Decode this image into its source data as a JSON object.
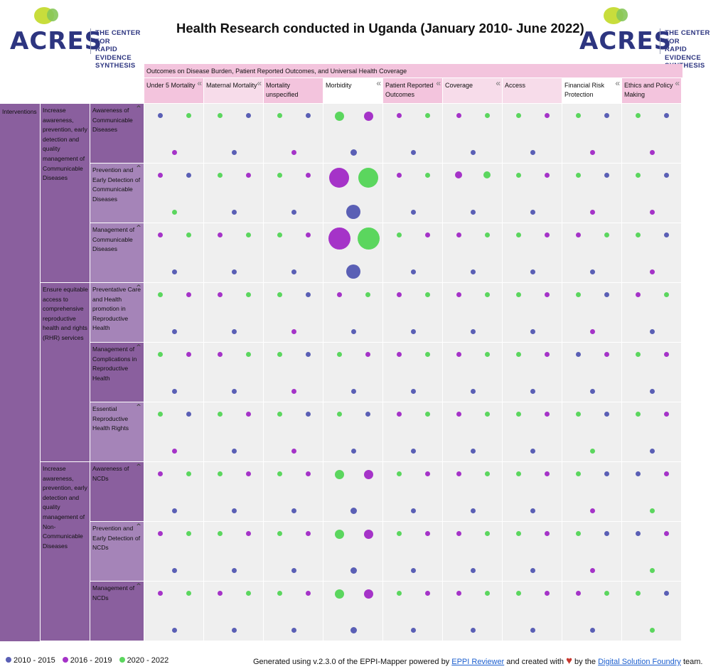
{
  "header": {
    "title": "Health Research conducted in Uganda (January 2010- June 2022)",
    "logo_word": "ACRES",
    "logo_sub": [
      "THE CENTER FOR",
      "RAPID EVIDENCE",
      "SYNTHESIS"
    ]
  },
  "band_label": "Outcomes on Disease Burden, Patient Reported Outcomes, and Universal Health Coverage",
  "columns": [
    {
      "label": "Under 5 Mortality",
      "bg": "#f3c4dd",
      "collapse": "«"
    },
    {
      "label": "Maternal Mortality",
      "bg": "#f7dcea",
      "collapse": "«"
    },
    {
      "label": "Mortality unspecified",
      "bg": "#f3c4dd",
      "collapse": ""
    },
    {
      "label": "Morbidity",
      "bg": "#ffffff",
      "collapse": "«"
    },
    {
      "label": "Patient Reported Outcomes",
      "bg": "#f3c4dd",
      "collapse": "«"
    },
    {
      "label": "Coverage",
      "bg": "#f7dcea",
      "collapse": "«"
    },
    {
      "label": "Access",
      "bg": "#f7dcea",
      "collapse": ""
    },
    {
      "label": "Financial Risk Protection",
      "bg": "#ffffff",
      "collapse": "«"
    },
    {
      "label": "Ethics and Policy Making",
      "bg": "#f3c4dd",
      "collapse": "«"
    }
  ],
  "row_group": "Interventions",
  "mid_rows": [
    {
      "label": "Increase awareness, prevention, early detection and quality management of Communicable Diseases",
      "span": 3
    },
    {
      "label": "Ensure equitable access to comprehensive reproductive health and rights (RHR) services",
      "span": 3
    },
    {
      "label": "Increase awareness, prevention, early detection and quality management of Non-Communicable Diseases",
      "span": 3
    }
  ],
  "sub_rows": [
    {
      "label": "Awareness of Communicable Diseases",
      "bg": "#8a5f9e"
    },
    {
      "label": "Prevention and Early Detection of Communicable Diseases",
      "bg": "#a584b8"
    },
    {
      "label": "Management of Communicable Diseases",
      "bg": "#a584b8"
    },
    {
      "label": "Preventative Care and Health promotion in Reproductive Health",
      "bg": "#a584b8"
    },
    {
      "label": "Management of Complications in Reproductive Health",
      "bg": "#8a5f9e"
    },
    {
      "label": "Essential Reproductive Health Rights",
      "bg": "#a584b8"
    },
    {
      "label": "Awareness of NCDs",
      "bg": "#8a5f9e"
    },
    {
      "label": "Prevention and Early Detection of NCDs",
      "bg": "#a584b8"
    },
    {
      "label": "Management of NCDs",
      "bg": "#8a5f9e"
    }
  ],
  "colors": {
    "2010-2015": "#5a5fb5",
    "2016-2019": "#a533c8",
    "2020-2022": "#5bd65e"
  },
  "bubble_sizes": {
    "small": 7,
    "medium": 13,
    "large": 28,
    "xlarge": 31
  },
  "grid": [
    [
      [
        "b",
        "g",
        "p"
      ],
      [
        "g",
        "b",
        "b"
      ],
      [
        "g",
        "b",
        "p"
      ],
      [
        "g",
        "p",
        "b",
        "M"
      ],
      [
        "p",
        "g",
        "b"
      ],
      [
        "p",
        "g",
        "b"
      ],
      [
        "g",
        "p",
        "b"
      ],
      [
        "g",
        "b",
        "p"
      ],
      [
        "g",
        "b",
        "p"
      ]
    ],
    [
      [
        "p",
        "b",
        "g"
      ],
      [
        "g",
        "p",
        "b"
      ],
      [
        "g",
        "p",
        "b"
      ],
      [
        "p",
        "g",
        "b",
        "L"
      ],
      [
        "p",
        "g",
        "b"
      ],
      [
        "p",
        "g",
        "b",
        "m"
      ],
      [
        "g",
        "p",
        "b"
      ],
      [
        "g",
        "b",
        "p"
      ],
      [
        "g",
        "b",
        "p"
      ]
    ],
    [
      [
        "p",
        "g",
        "b"
      ],
      [
        "p",
        "g",
        "b"
      ],
      [
        "g",
        "p",
        "b"
      ],
      [
        "p",
        "g",
        "b",
        "X"
      ],
      [
        "g",
        "p",
        "b"
      ],
      [
        "p",
        "g",
        "b"
      ],
      [
        "g",
        "p",
        "b"
      ],
      [
        "p",
        "g",
        "b"
      ],
      [
        "g",
        "b",
        "p"
      ]
    ],
    [
      [
        "g",
        "p",
        "b"
      ],
      [
        "p",
        "g",
        "b"
      ],
      [
        "g",
        "b",
        "p"
      ],
      [
        "p",
        "g",
        "b"
      ],
      [
        "p",
        "g",
        "b"
      ],
      [
        "p",
        "g",
        "b"
      ],
      [
        "g",
        "p",
        "b"
      ],
      [
        "g",
        "b",
        "p"
      ],
      [
        "p",
        "g",
        "b"
      ]
    ],
    [
      [
        "g",
        "p",
        "b"
      ],
      [
        "p",
        "g",
        "b"
      ],
      [
        "g",
        "b",
        "p"
      ],
      [
        "g",
        "p",
        "b"
      ],
      [
        "p",
        "g",
        "b"
      ],
      [
        "p",
        "g",
        "b"
      ],
      [
        "g",
        "p",
        "b"
      ],
      [
        "b",
        "p",
        "b"
      ],
      [
        "g",
        "p",
        "b"
      ]
    ],
    [
      [
        "g",
        "b",
        "p"
      ],
      [
        "g",
        "p",
        "b"
      ],
      [
        "g",
        "b",
        "p"
      ],
      [
        "g",
        "b",
        "b"
      ],
      [
        "p",
        "g",
        "b"
      ],
      [
        "p",
        "g",
        "b"
      ],
      [
        "g",
        "p",
        "b"
      ],
      [
        "g",
        "b",
        "g"
      ],
      [
        "g",
        "p",
        "b"
      ]
    ],
    [
      [
        "p",
        "g",
        "b"
      ],
      [
        "g",
        "p",
        "b"
      ],
      [
        "g",
        "p",
        "b"
      ],
      [
        "g",
        "p",
        "b",
        "M"
      ],
      [
        "g",
        "p",
        "b"
      ],
      [
        "p",
        "g",
        "b"
      ],
      [
        "g",
        "p",
        "b"
      ],
      [
        "g",
        "b",
        "p"
      ],
      [
        "b",
        "p",
        "g"
      ]
    ],
    [
      [
        "p",
        "g",
        "b"
      ],
      [
        "g",
        "p",
        "b"
      ],
      [
        "g",
        "p",
        "b"
      ],
      [
        "g",
        "p",
        "b",
        "M"
      ],
      [
        "g",
        "p",
        "b"
      ],
      [
        "p",
        "g",
        "b"
      ],
      [
        "g",
        "p",
        "b"
      ],
      [
        "g",
        "b",
        "p"
      ],
      [
        "b",
        "p",
        "g"
      ]
    ],
    [
      [
        "p",
        "g",
        "b"
      ],
      [
        "p",
        "g",
        "b"
      ],
      [
        "g",
        "p",
        "b"
      ],
      [
        "g",
        "p",
        "b",
        "M"
      ],
      [
        "g",
        "p",
        "b"
      ],
      [
        "p",
        "g",
        "b"
      ],
      [
        "g",
        "p",
        "b"
      ],
      [
        "p",
        "g",
        "b"
      ],
      [
        "g",
        "b",
        "g"
      ]
    ]
  ],
  "legend": [
    {
      "label": "2010 - 2015",
      "color": "#5a5fb5"
    },
    {
      "label": "2016 - 2019",
      "color": "#a533c8"
    },
    {
      "label": "2020 - 2022",
      "color": "#5bd65e"
    }
  ],
  "footer": {
    "pre": "Generated using v.2.3.0 of the EPPI-Mapper powered by",
    "link1": "EPPI Reviewer",
    "mid": "and created with",
    "heart": "♥",
    "by": "by the",
    "link2": "Digital Solution Foundry",
    "post": "team."
  }
}
